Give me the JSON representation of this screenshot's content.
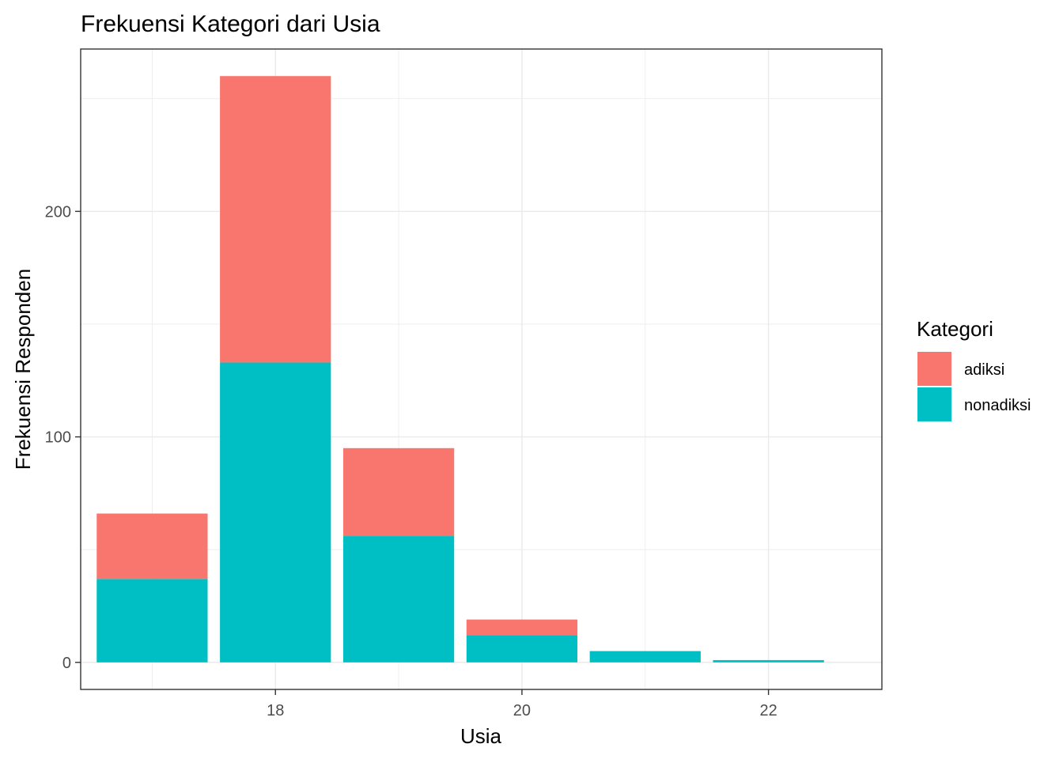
{
  "chart_data": {
    "type": "bar",
    "stacked": true,
    "title": "Frekuensi Kategori dari Usia",
    "xlabel": "Usia",
    "ylabel": "Frekuensi Responden",
    "x": [
      17,
      18,
      19,
      20,
      21,
      22
    ],
    "x_ticks": [
      18,
      20,
      22
    ],
    "y_ticks": [
      0,
      100,
      200
    ],
    "xlim": [
      16.42,
      22.92
    ],
    "ylim": [
      -12,
      272
    ],
    "grid": true,
    "legend": {
      "title": "Kategori",
      "position": "right"
    },
    "series": [
      {
        "name": "nonadiksi",
        "color": "#00BFC4",
        "values": [
          37,
          133,
          56,
          12,
          5,
          1
        ]
      },
      {
        "name": "adiksi",
        "color": "#F8766D",
        "values": [
          29,
          127,
          39,
          7,
          0,
          0
        ]
      }
    ]
  }
}
